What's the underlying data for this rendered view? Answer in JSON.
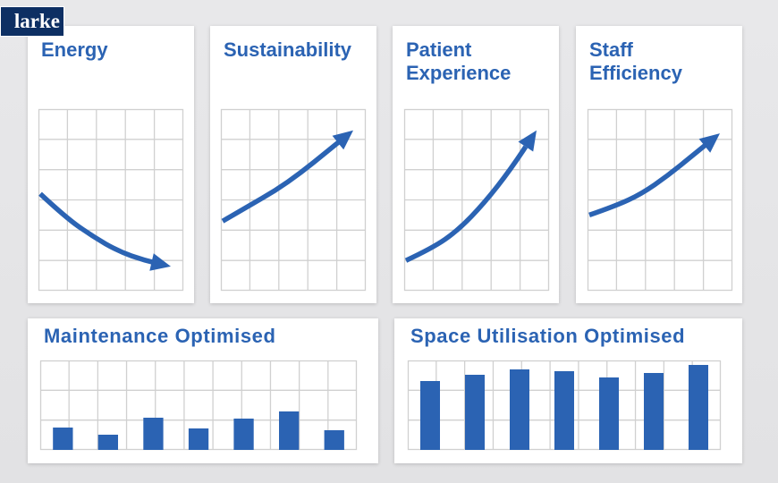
{
  "logo": {
    "text": "larke"
  },
  "colors": {
    "accent": "#2b63b3",
    "grid": "#d0d0d0",
    "card": "#ffffff",
    "background": "#e6e6e8",
    "logo_bg": "#0d2f63"
  },
  "chart_data": [
    {
      "type": "line",
      "title": "Energy",
      "trend": "decreasing",
      "grid": true,
      "x": [
        0,
        1,
        2,
        3,
        4,
        5
      ],
      "values": [
        3.2,
        2.4,
        1.8,
        1.3,
        1.0,
        0.8
      ],
      "ylim": [
        0,
        6
      ]
    },
    {
      "type": "line",
      "title": "Sustainability",
      "trend": "increasing",
      "grid": true,
      "x": [
        0,
        1,
        2,
        3,
        4,
        5
      ],
      "values": [
        2.3,
        2.8,
        3.3,
        3.9,
        4.6,
        5.3
      ],
      "ylim": [
        0,
        6
      ]
    },
    {
      "type": "line",
      "title": "Patient\nExperience",
      "trend": "increasing",
      "grid": true,
      "x": [
        0,
        1,
        2,
        3,
        4,
        5
      ],
      "values": [
        1.0,
        1.4,
        2.0,
        2.9,
        4.0,
        5.3
      ],
      "ylim": [
        0,
        6
      ]
    },
    {
      "type": "line",
      "title": "Staff\nEfficiency",
      "trend": "increasing",
      "grid": true,
      "x": [
        0,
        1,
        2,
        3,
        4,
        5
      ],
      "values": [
        2.5,
        2.8,
        3.2,
        3.8,
        4.5,
        5.2
      ],
      "ylim": [
        0,
        6
      ]
    },
    {
      "type": "bar",
      "title": "Maintenance Optimised",
      "grid": true,
      "values": [
        2.5,
        1.7,
        3.6,
        2.4,
        3.5,
        4.3,
        2.2
      ],
      "ylim": [
        0,
        10
      ]
    },
    {
      "type": "bar",
      "title": "Space Utilisation Optimised",
      "grid": true,
      "values": [
        7.7,
        8.4,
        9.0,
        8.8,
        8.1,
        8.6,
        9.5
      ],
      "ylim": [
        0,
        10
      ]
    }
  ]
}
